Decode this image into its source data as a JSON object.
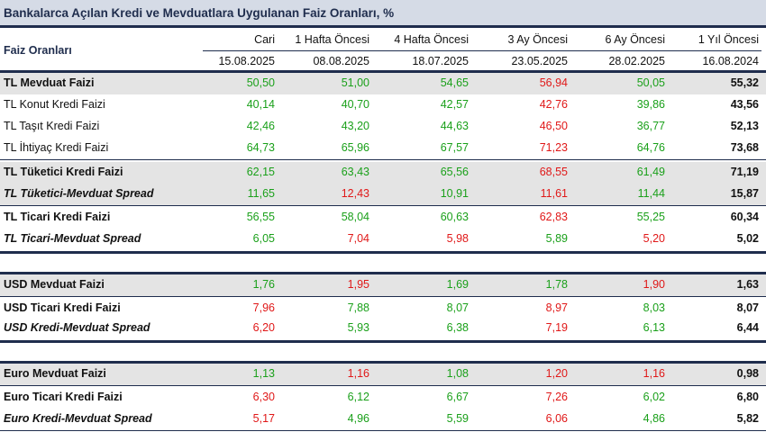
{
  "title": "Bankalarca Açılan Kredi ve Mevduatlara Uygulanan Faiz Oranları, %",
  "header": {
    "row_label": "Faiz Oranları",
    "columns": [
      {
        "name": "Cari",
        "date": "15.08.2025"
      },
      {
        "name": "1 Hafta Öncesi",
        "date": "08.08.2025"
      },
      {
        "name": "4 Hafta Öncesi",
        "date": "18.07.2025"
      },
      {
        "name": "3 Ay Öncesi",
        "date": "23.05.2025"
      },
      {
        "name": "6 Ay Öncesi",
        "date": "28.02.2025"
      },
      {
        "name": "1 Yıl Öncesi",
        "date": "16.08.2024"
      }
    ]
  },
  "rows": [
    {
      "label": "TL Mevduat Faizi",
      "values": [
        "50,50",
        "51,00",
        "54,65",
        "56,94",
        "50,05",
        "55,32"
      ],
      "colors": [
        "g",
        "g",
        "g",
        "r",
        "g",
        "k"
      ]
    },
    {
      "label": "TL Konut Kredi Faizi",
      "values": [
        "40,14",
        "40,70",
        "42,57",
        "42,76",
        "39,86",
        "43,56"
      ],
      "colors": [
        "g",
        "g",
        "g",
        "r",
        "g",
        "k"
      ]
    },
    {
      "label": "TL Taşıt Kredi Faizi",
      "values": [
        "42,46",
        "43,20",
        "44,63",
        "46,50",
        "36,77",
        "52,13"
      ],
      "colors": [
        "g",
        "g",
        "g",
        "r",
        "g",
        "k"
      ]
    },
    {
      "label": "TL İhtiyaç Kredi Faizi",
      "values": [
        "64,73",
        "65,96",
        "67,57",
        "71,23",
        "64,76",
        "73,68"
      ],
      "colors": [
        "g",
        "g",
        "g",
        "r",
        "g",
        "k"
      ]
    },
    {
      "label": "TL Tüketici Kredi Faizi",
      "values": [
        "62,15",
        "63,43",
        "65,56",
        "68,55",
        "61,49",
        "71,19"
      ],
      "colors": [
        "g",
        "g",
        "g",
        "r",
        "g",
        "k"
      ]
    },
    {
      "label": "TL Tüketici-Mevduat Spread",
      "values": [
        "11,65",
        "12,43",
        "10,91",
        "11,61",
        "11,44",
        "15,87"
      ],
      "colors": [
        "g",
        "r",
        "g",
        "r",
        "g",
        "k"
      ]
    },
    {
      "label": "TL Ticari Kredi Faizi",
      "values": [
        "56,55",
        "58,04",
        "60,63",
        "62,83",
        "55,25",
        "60,34"
      ],
      "colors": [
        "g",
        "g",
        "g",
        "r",
        "g",
        "k"
      ]
    },
    {
      "label": "TL Ticari-Mevduat Spread",
      "values": [
        "6,05",
        "7,04",
        "5,98",
        "5,89",
        "5,20",
        "5,02"
      ],
      "colors": [
        "g",
        "r",
        "r",
        "g",
        "r",
        "k"
      ]
    },
    {
      "label": "USD Mevduat Faizi",
      "values": [
        "1,76",
        "1,95",
        "1,69",
        "1,78",
        "1,90",
        "1,63"
      ],
      "colors": [
        "g",
        "r",
        "g",
        "g",
        "r",
        "k"
      ]
    },
    {
      "label": "USD Ticari Kredi Faizi",
      "values": [
        "7,96",
        "7,88",
        "8,07",
        "8,97",
        "8,03",
        "8,07"
      ],
      "colors": [
        "r",
        "g",
        "g",
        "r",
        "g",
        "k"
      ]
    },
    {
      "label": "USD Kredi-Mevduat Spread",
      "values": [
        "6,20",
        "5,93",
        "6,38",
        "7,19",
        "6,13",
        "6,44"
      ],
      "colors": [
        "r",
        "g",
        "g",
        "r",
        "g",
        "k"
      ]
    },
    {
      "label": "Euro Mevduat Faizi",
      "values": [
        "1,13",
        "1,16",
        "1,08",
        "1,20",
        "1,16",
        "0,98"
      ],
      "colors": [
        "g",
        "r",
        "g",
        "r",
        "r",
        "k"
      ]
    },
    {
      "label": "Euro Ticari Kredi Faizi",
      "values": [
        "6,30",
        "6,12",
        "6,67",
        "7,26",
        "6,02",
        "6,80"
      ],
      "colors": [
        "r",
        "g",
        "g",
        "r",
        "g",
        "k"
      ]
    },
    {
      "label": "Euro Kredi-Mevduat Spread",
      "values": [
        "5,17",
        "4,96",
        "5,59",
        "6,06",
        "4,86",
        "5,82"
      ],
      "colors": [
        "r",
        "g",
        "g",
        "r",
        "g",
        "k"
      ]
    }
  ],
  "colors": {
    "green": "#1aa01a",
    "red": "#e01818",
    "navy": "#1f2d4d",
    "shade": "#e4e4e4"
  }
}
